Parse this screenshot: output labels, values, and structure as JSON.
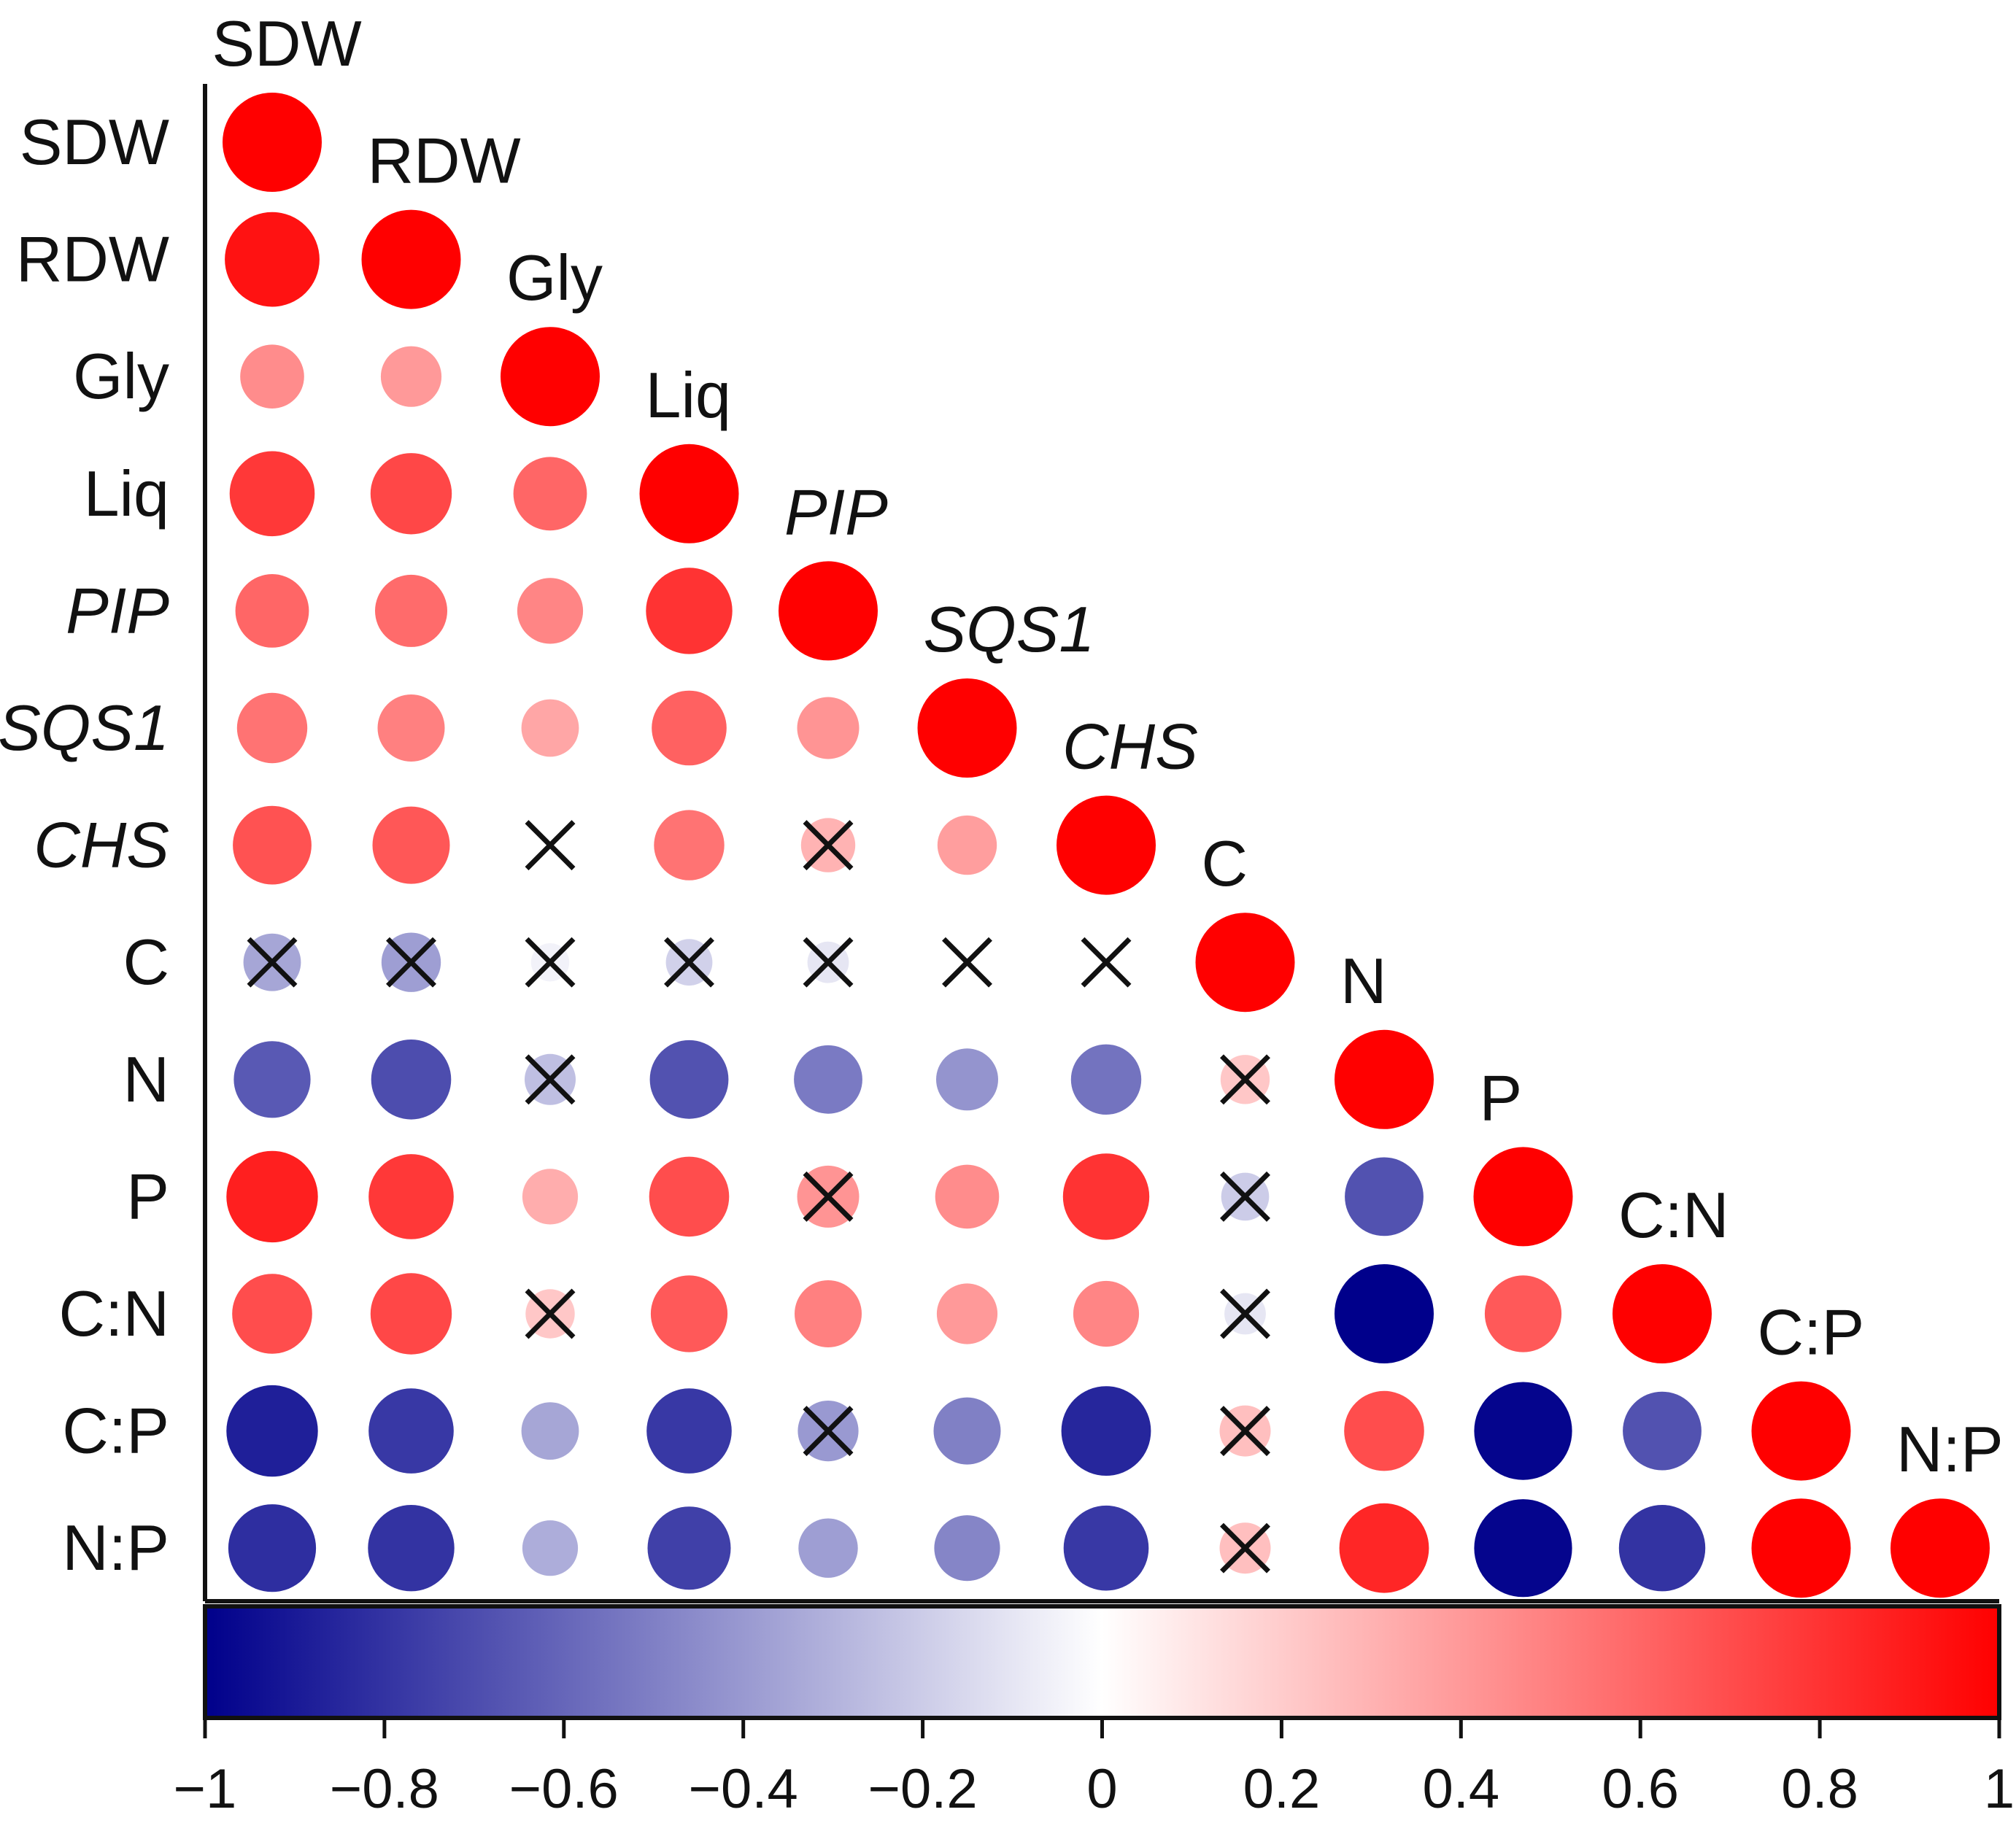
{
  "chart_data": {
    "type": "heatmap",
    "style": "lower-triangle correlogram with circles; circle size and colour encode correlation coefficient; X marks non-significant correlations",
    "title": "",
    "variables": [
      "SDW",
      "RDW",
      "Gly",
      "Liq",
      "PIP",
      "SQS1",
      "CHS",
      "C",
      "N",
      "P",
      "C:N",
      "C:P",
      "N:P"
    ],
    "italic_variables": [
      "PIP",
      "SQS1",
      "CHS"
    ],
    "matrix": [
      [
        1.0
      ],
      [
        0.93,
        1.0
      ],
      [
        0.45,
        0.4,
        1.0
      ],
      [
        0.78,
        0.72,
        0.6,
        1.0
      ],
      [
        0.6,
        0.58,
        0.48,
        0.8,
        1.0
      ],
      [
        0.55,
        0.5,
        0.35,
        0.62,
        0.42,
        1.0
      ],
      [
        0.68,
        0.66,
        0.0,
        0.55,
        0.3,
        0.38,
        1.0
      ],
      [
        -0.35,
        -0.38,
        -0.05,
        -0.18,
        -0.1,
        0.0,
        0.0,
        1.0
      ],
      [
        -0.65,
        -0.7,
        -0.25,
        -0.68,
        -0.52,
        -0.42,
        -0.55,
        0.22,
        1.0
      ],
      [
        0.88,
        0.78,
        0.32,
        0.7,
        0.42,
        0.45,
        0.8,
        -0.2,
        -0.68,
        1.0
      ],
      [
        0.7,
        0.72,
        0.22,
        0.65,
        0.5,
        0.4,
        0.48,
        -0.1,
        -1.0,
        0.65,
        1.0
      ],
      [
        -0.88,
        -0.78,
        -0.35,
        -0.78,
        -0.4,
        -0.5,
        -0.85,
        0.25,
        0.7,
        -0.98,
        -0.68,
        1.0
      ],
      [
        -0.82,
        -0.8,
        -0.32,
        -0.75,
        -0.38,
        -0.48,
        -0.78,
        0.25,
        0.85,
        -0.98,
        -0.8,
        1.0,
        1.0
      ]
    ],
    "nonsignificant": [
      [
        6,
        2
      ],
      [
        6,
        4
      ],
      [
        7,
        0
      ],
      [
        7,
        1
      ],
      [
        7,
        2
      ],
      [
        7,
        3
      ],
      [
        7,
        4
      ],
      [
        7,
        5
      ],
      [
        7,
        6
      ],
      [
        8,
        2
      ],
      [
        8,
        7
      ],
      [
        9,
        4
      ],
      [
        9,
        7
      ],
      [
        10,
        2
      ],
      [
        10,
        7
      ],
      [
        11,
        4
      ],
      [
        11,
        7
      ],
      [
        12,
        7
      ]
    ],
    "colorbar": {
      "range": [
        -1,
        1
      ],
      "ticks": [
        -1,
        -0.8,
        -0.6,
        -0.4,
        -0.2,
        0,
        0.2,
        0.4,
        0.6,
        0.8,
        1
      ],
      "tick_labels": [
        "−1",
        "−0.8",
        "−0.6",
        "−0.4",
        "−0.2",
        "0",
        "0.2",
        "0.4",
        "0.6",
        "0.8",
        "1"
      ],
      "colors": {
        "negative": "#00008b",
        "zero": "#ffffff",
        "positive": "#ff0000"
      }
    },
    "marker_color": "#111111"
  }
}
